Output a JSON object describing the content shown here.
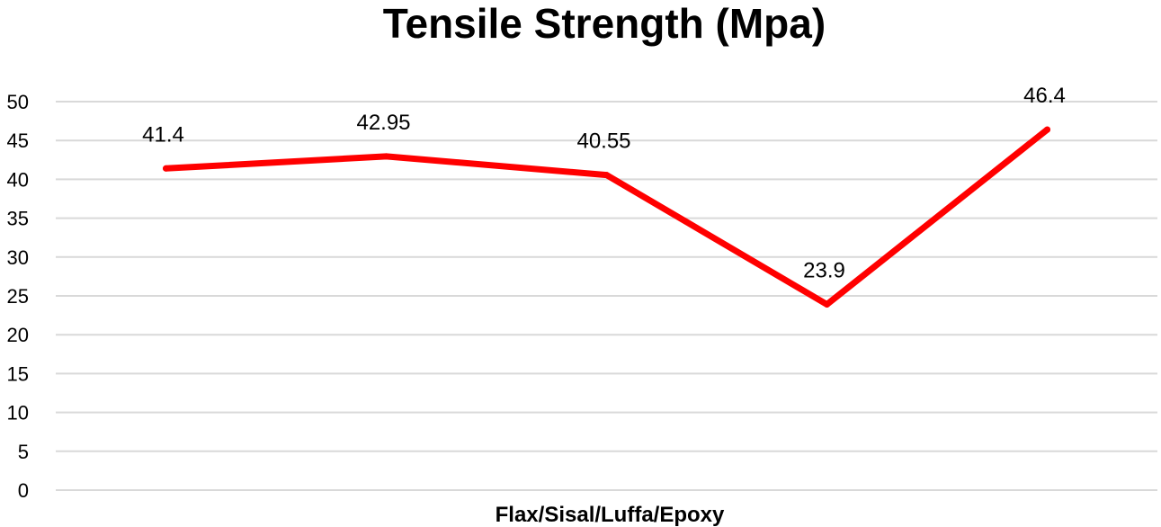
{
  "chart_data": {
    "type": "line",
    "title": "Tensile Strength (Mpa)",
    "xlabel": "Flax/Sisal/Luffa/Epoxy",
    "ylabel": "",
    "categories": [
      "",
      "",
      "",
      "",
      ""
    ],
    "series": [
      {
        "values": [
          41.4,
          42.95,
          40.55,
          23.9,
          46.4
        ],
        "data_labels": [
          "41.4",
          "42.95",
          "40.55",
          "23.9",
          "46.4"
        ],
        "color": "#ff0000"
      }
    ],
    "ylim": [
      0,
      50
    ],
    "yticks": [
      0,
      5,
      10,
      15,
      20,
      25,
      30,
      35,
      40,
      45,
      50
    ],
    "ytick_labels": [
      "0",
      "5",
      "10",
      "15",
      "20",
      "25",
      "30",
      "35",
      "40",
      "45",
      "50"
    ],
    "grid": true,
    "legend": "none"
  }
}
